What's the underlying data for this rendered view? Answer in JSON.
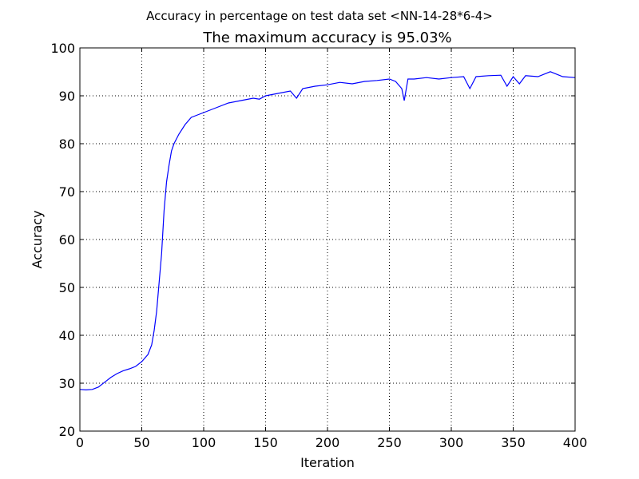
{
  "chart_data": {
    "type": "line",
    "suptitle": "Accuracy in percentage on test data set <NN-14-28*6-4>",
    "title": "The maximum accuracy is 95.03%",
    "xlabel": "Iteration",
    "ylabel": "Accuracy",
    "xlim": [
      0,
      400
    ],
    "ylim": [
      20,
      100
    ],
    "x_ticks": [
      "0",
      "50",
      "100",
      "150",
      "200",
      "250",
      "300",
      "350",
      "400"
    ],
    "y_ticks": [
      "20",
      "30",
      "40",
      "50",
      "60",
      "70",
      "80",
      "90",
      "100"
    ],
    "grid": true,
    "color": "#0000ff",
    "series": [
      {
        "x": [
          0,
          5,
          10,
          15,
          20,
          25,
          30,
          35,
          40,
          45,
          50,
          55,
          58,
          60,
          62,
          64,
          66,
          68,
          70,
          72,
          74,
          76,
          78,
          80,
          85,
          90,
          95,
          100,
          110,
          120,
          130,
          140,
          145,
          150,
          160,
          170,
          175,
          180,
          190,
          200,
          210,
          220,
          230,
          240,
          250,
          255,
          260,
          262,
          265,
          270,
          280,
          290,
          300,
          310,
          315,
          320,
          330,
          340,
          345,
          350,
          355,
          360,
          370,
          380,
          390,
          400
        ],
        "values": [
          28.7,
          28.6,
          28.7,
          29.2,
          30.2,
          31.2,
          32.0,
          32.6,
          33.0,
          33.5,
          34.5,
          36.0,
          38.0,
          41.0,
          45.0,
          51.0,
          57.0,
          66.0,
          72.0,
          75.5,
          78.5,
          80.0,
          81.0,
          82.0,
          84.0,
          85.5,
          86.0,
          86.5,
          87.5,
          88.5,
          89.0,
          89.5,
          89.3,
          90.0,
          90.5,
          91.0,
          89.5,
          91.5,
          92.0,
          92.3,
          92.8,
          92.5,
          93.0,
          93.2,
          93.5,
          93.0,
          91.5,
          89.0,
          93.5,
          93.5,
          93.8,
          93.5,
          93.8,
          94.0,
          91.5,
          94.0,
          94.2,
          94.3,
          92.0,
          94.0,
          92.5,
          94.2,
          94.0,
          95.03,
          94.0,
          93.8
        ]
      }
    ]
  }
}
